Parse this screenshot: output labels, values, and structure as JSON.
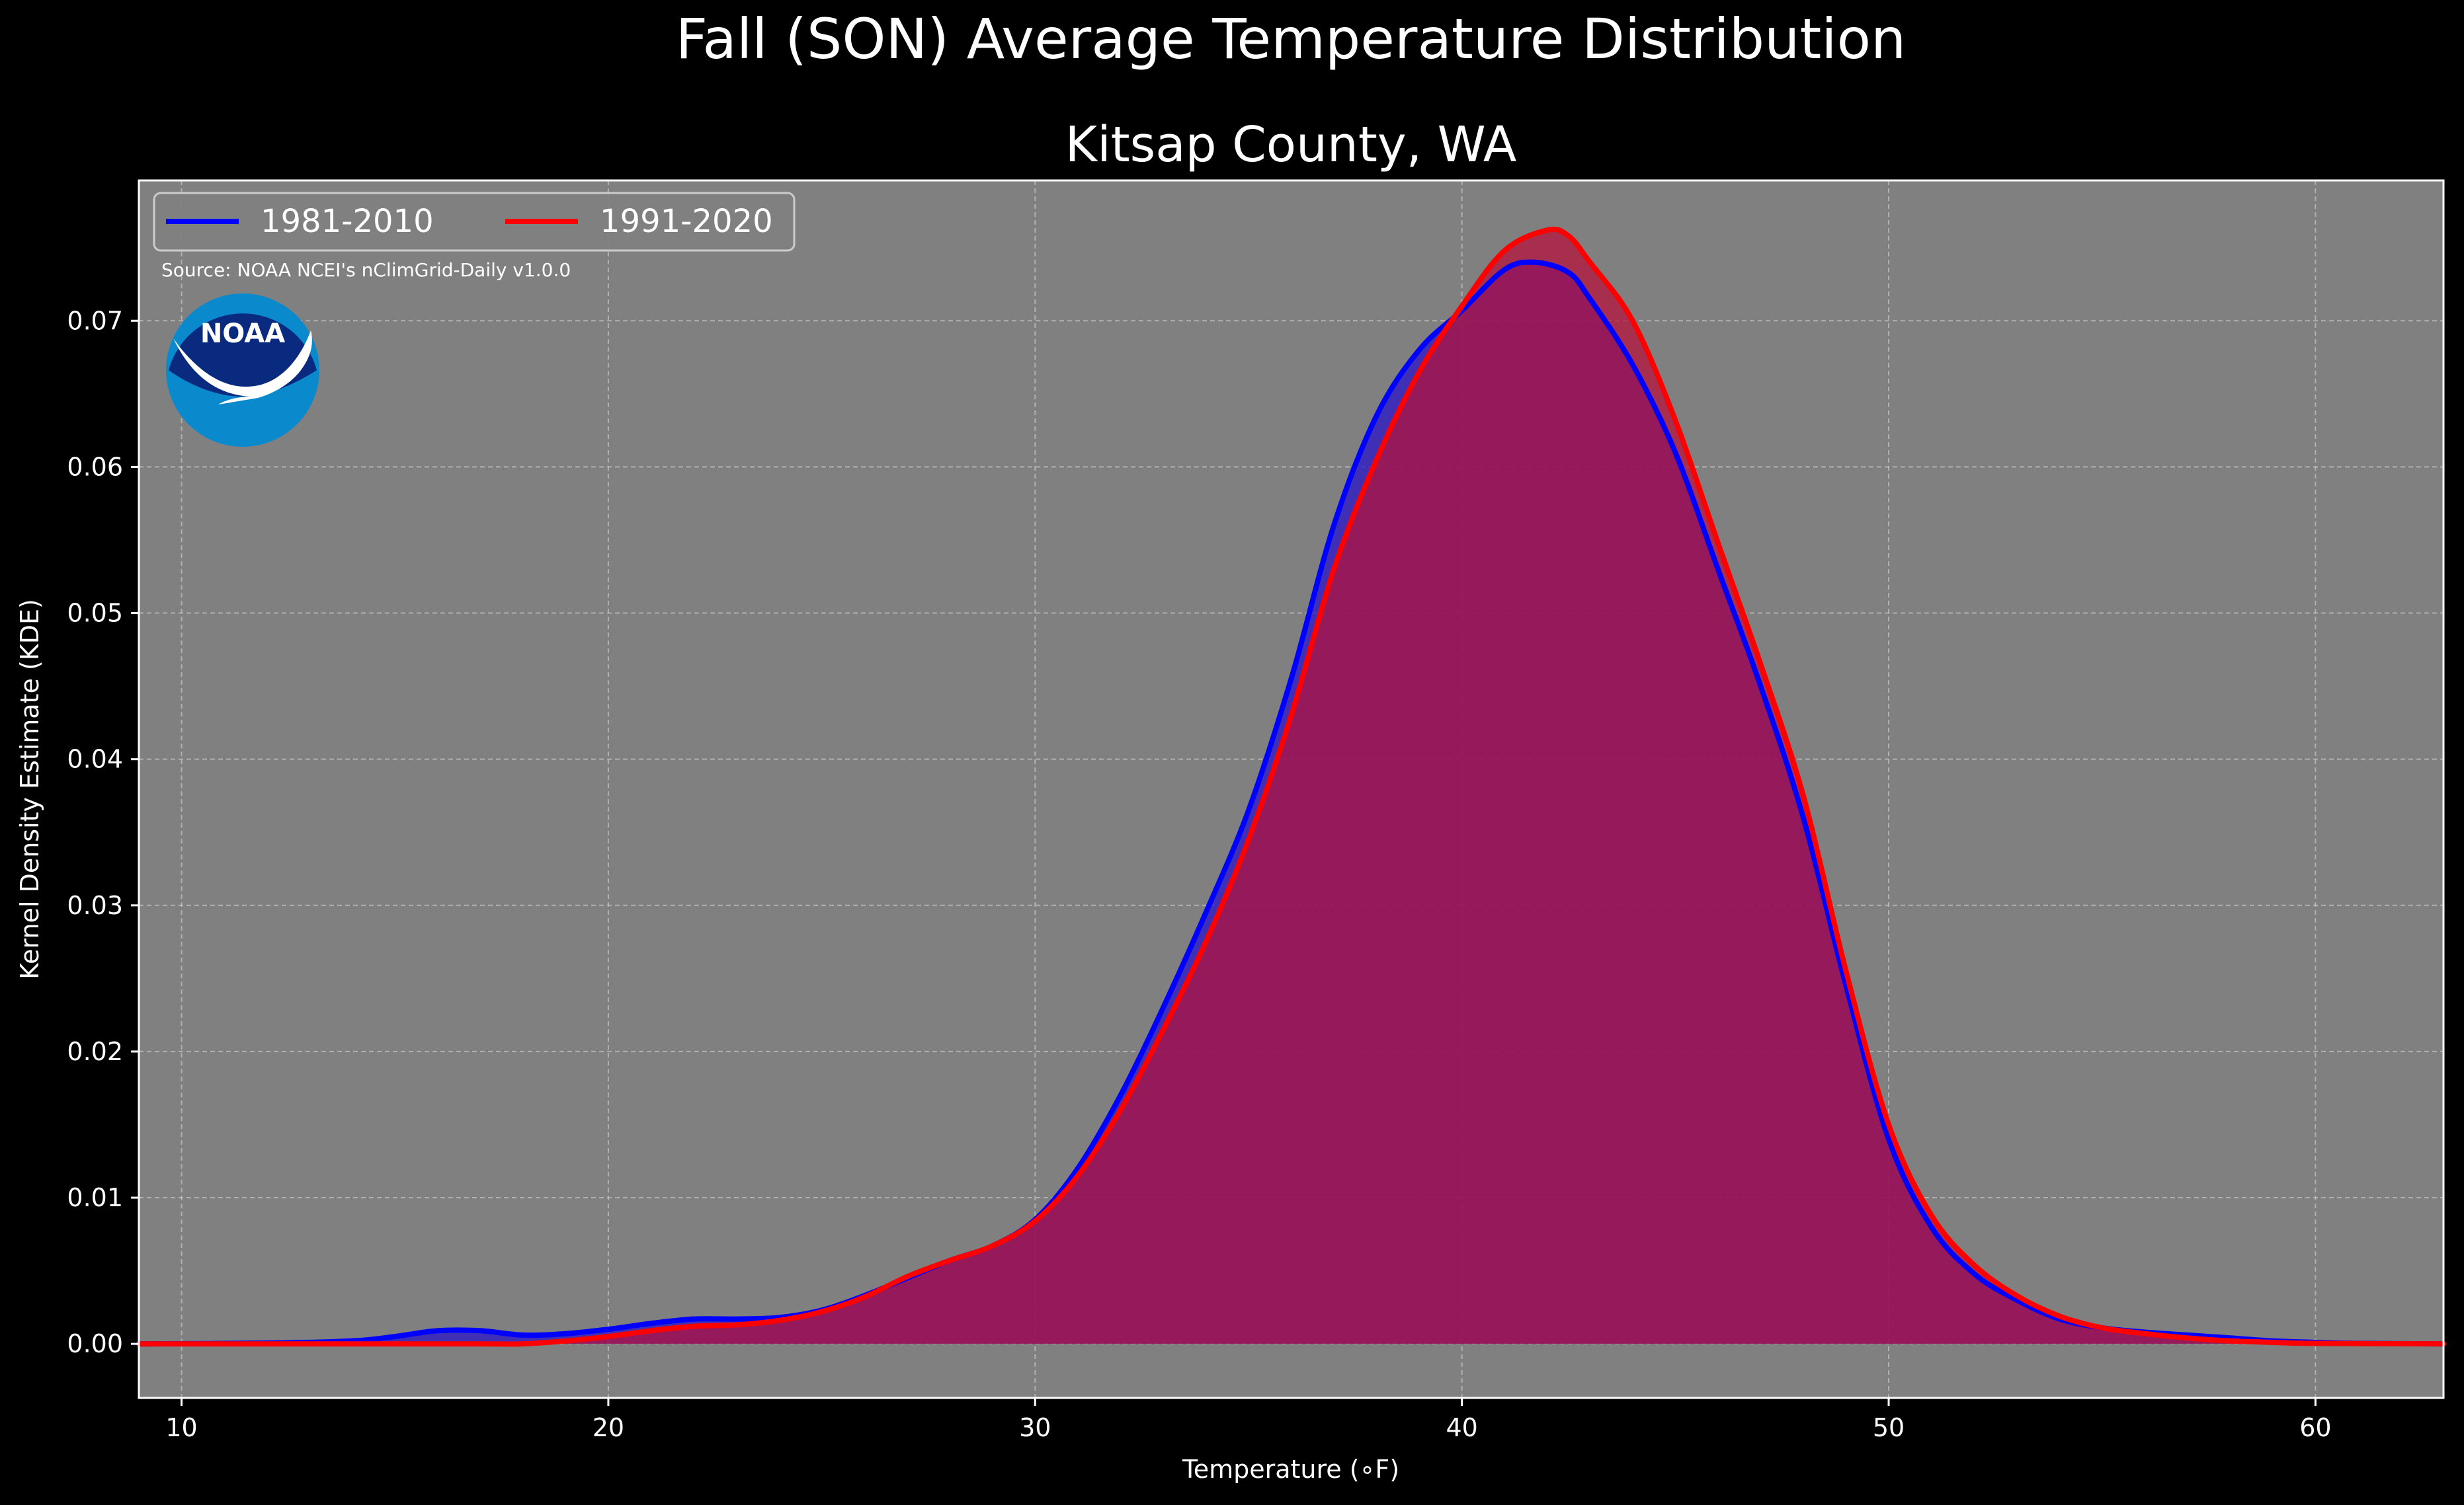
{
  "chart_data": {
    "type": "area",
    "suptitle": "Fall (SON) Average Temperature Distribution",
    "title": "Kitsap County, WA",
    "xlabel": "Temperature (∘F)",
    "ylabel": "Kernel Density Estimate (KDE)",
    "xlim": [
      9,
      63
    ],
    "ylim": [
      -0.0037,
      0.0796
    ],
    "xticks": [
      10,
      20,
      30,
      40,
      50,
      60
    ],
    "yticks": [
      0.0,
      0.01,
      0.02,
      0.03,
      0.04,
      0.05,
      0.06,
      0.07
    ],
    "ytick_labels": [
      "0.00",
      "0.01",
      "0.02",
      "0.03",
      "0.04",
      "0.05",
      "0.06",
      "0.07"
    ],
    "grid": true,
    "legend_position": "top-left",
    "background_color": "#808080",
    "source": "Source: NOAA NCEI's nClimGrid-Daily v1.0.0",
    "logo_text": "NOAA",
    "series": [
      {
        "name": "1981-2010",
        "color": "#0000ff",
        "fill": "#2a14c8",
        "points": [
          [
            9,
            0
          ],
          [
            12,
            5e-05
          ],
          [
            14,
            0.0002
          ],
          [
            15,
            0.0005
          ],
          [
            16,
            0.0009
          ],
          [
            17,
            0.0009
          ],
          [
            18,
            0.0006
          ],
          [
            19,
            0.0007
          ],
          [
            20,
            0.001
          ],
          [
            21,
            0.0014
          ],
          [
            22,
            0.0017
          ],
          [
            23,
            0.0017
          ],
          [
            24,
            0.0018
          ],
          [
            25,
            0.0023
          ],
          [
            26,
            0.0033
          ],
          [
            27,
            0.0045
          ],
          [
            28,
            0.0057
          ],
          [
            29,
            0.0067
          ],
          [
            30,
            0.0085
          ],
          [
            31,
            0.012
          ],
          [
            32,
            0.017
          ],
          [
            33,
            0.023
          ],
          [
            34,
            0.0295
          ],
          [
            35,
            0.0365
          ],
          [
            36,
            0.0455
          ],
          [
            37,
            0.056
          ],
          [
            38,
            0.0635
          ],
          [
            39,
            0.068
          ],
          [
            40,
            0.0707
          ],
          [
            41,
            0.0735
          ],
          [
            41.7,
            0.074
          ],
          [
            42.5,
            0.0733
          ],
          [
            43,
            0.0715
          ],
          [
            44,
            0.067
          ],
          [
            45,
            0.061
          ],
          [
            46,
            0.053
          ],
          [
            47,
            0.045
          ],
          [
            48,
            0.036
          ],
          [
            49,
            0.0245
          ],
          [
            50,
            0.014
          ],
          [
            51,
            0.008
          ],
          [
            52,
            0.0048
          ],
          [
            53,
            0.003
          ],
          [
            54,
            0.0017
          ],
          [
            55,
            0.0011
          ],
          [
            56,
            0.0008
          ],
          [
            57,
            0.0006
          ],
          [
            58,
            0.0004
          ],
          [
            59,
            0.0002
          ],
          [
            60,
            0.0001
          ],
          [
            61,
            3e-05
          ],
          [
            63,
            0
          ]
        ]
      },
      {
        "name": "1991-2020",
        "color": "#ff0000",
        "fill": "#b4143c",
        "points": [
          [
            9,
            0
          ],
          [
            12,
            0
          ],
          [
            15,
            0
          ],
          [
            17,
            0
          ],
          [
            18,
            0
          ],
          [
            19,
            0.0002
          ],
          [
            20,
            0.0005
          ],
          [
            21,
            0.0009
          ],
          [
            22,
            0.0012
          ],
          [
            23,
            0.0013
          ],
          [
            24,
            0.0016
          ],
          [
            25,
            0.0022
          ],
          [
            26,
            0.0032
          ],
          [
            27,
            0.0046
          ],
          [
            28,
            0.0057
          ],
          [
            29,
            0.0067
          ],
          [
            30,
            0.0084
          ],
          [
            31,
            0.0115
          ],
          [
            32,
            0.016
          ],
          [
            33,
            0.0215
          ],
          [
            34,
            0.0275
          ],
          [
            35,
            0.0345
          ],
          [
            36,
            0.043
          ],
          [
            37,
            0.053
          ],
          [
            38,
            0.0605
          ],
          [
            39,
            0.0665
          ],
          [
            40,
            0.071
          ],
          [
            41,
            0.0748
          ],
          [
            42,
            0.0762
          ],
          [
            42.5,
            0.0758
          ],
          [
            43,
            0.074
          ],
          [
            44,
            0.07
          ],
          [
            45,
            0.0632
          ],
          [
            46,
            0.0548
          ],
          [
            47,
            0.0465
          ],
          [
            48,
            0.0375
          ],
          [
            49,
            0.0255
          ],
          [
            50,
            0.015
          ],
          [
            51,
            0.0088
          ],
          [
            52,
            0.0054
          ],
          [
            53,
            0.0033
          ],
          [
            54,
            0.0019
          ],
          [
            55,
            0.0011
          ],
          [
            56,
            0.0007
          ],
          [
            57,
            0.0004
          ],
          [
            58,
            0.0002
          ],
          [
            59,
            0.0001
          ],
          [
            60,
            3e-05
          ],
          [
            63,
            0
          ]
        ]
      }
    ]
  }
}
